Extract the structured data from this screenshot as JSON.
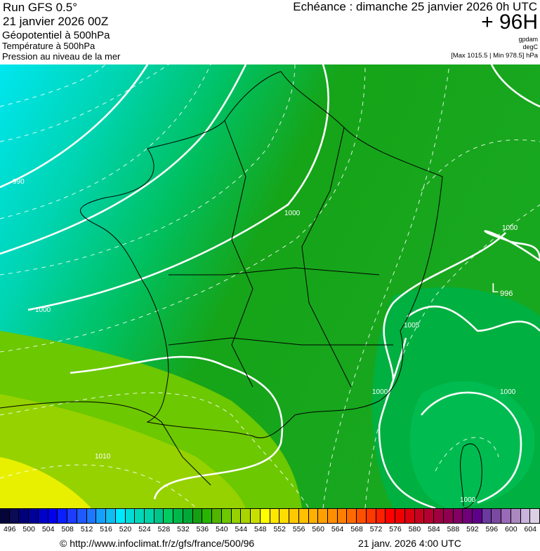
{
  "header": {
    "run": "Run GFS 0.5°",
    "run_date": "21 janvier 2026 00Z",
    "field1": "Géopotentiel à 500hPa",
    "field2": "Température à 500hPa",
    "field3": "Pression au niveau de la mer",
    "echeance": "Echéance : dimanche 25 janvier 2026 0h UTC",
    "lead": "+ 96H",
    "unit1": "gpdam",
    "unit2": "degC",
    "minmax": "[Max 1015.5 | Min 978.5] hPa"
  },
  "map": {
    "isobar_labels": [
      "990",
      "1000",
      "1000",
      "1005",
      "1000",
      "1000",
      "1010",
      "1000",
      "1000"
    ],
    "low_label": "L",
    "low_value": "996"
  },
  "scale": {
    "colors": [
      "#05053a",
      "#0a0a55",
      "#00007a",
      "#000099",
      "#0000cc",
      "#0000ee",
      "#0a1eff",
      "#1e3cff",
      "#1e5aff",
      "#1e78ff",
      "#14a0ff",
      "#10bcf0",
      "#00e8ff",
      "#00dcd8",
      "#00d8b8",
      "#00d4a8",
      "#00c48a",
      "#00cc60",
      "#00b84a",
      "#00a838",
      "#16a010",
      "#28b400",
      "#50b400",
      "#6cc800",
      "#96d200",
      "#aad400",
      "#c8e000",
      "#ffff00",
      "#ffe800",
      "#ffdc00",
      "#ffc800",
      "#ffc000",
      "#ffb000",
      "#ffa000",
      "#ff9000",
      "#ff8000",
      "#ff6a00",
      "#ff5000",
      "#ff3800",
      "#ff2000",
      "#ff0000",
      "#ee0000",
      "#dc0010",
      "#c80020",
      "#b40030",
      "#a00040",
      "#900050",
      "#820064",
      "#700078",
      "#60008a",
      "#6a3aa0",
      "#7a4aa0",
      "#9a6ab8",
      "#aa88c0",
      "#c8b4dc",
      "#dcd0e4"
    ],
    "ticks": [
      "496",
      "500",
      "504",
      "508",
      "512",
      "516",
      "520",
      "524",
      "528",
      "532",
      "536",
      "540",
      "544",
      "548",
      "552",
      "556",
      "560",
      "564",
      "568",
      "572",
      "576",
      "580",
      "584",
      "588",
      "592",
      "596",
      "600",
      "604"
    ]
  },
  "footer": {
    "copyright": "© http://www.infoclimat.fr/z/gfs/france/500/96",
    "timestamp": "21 janv. 2026  4:00 UTC"
  }
}
